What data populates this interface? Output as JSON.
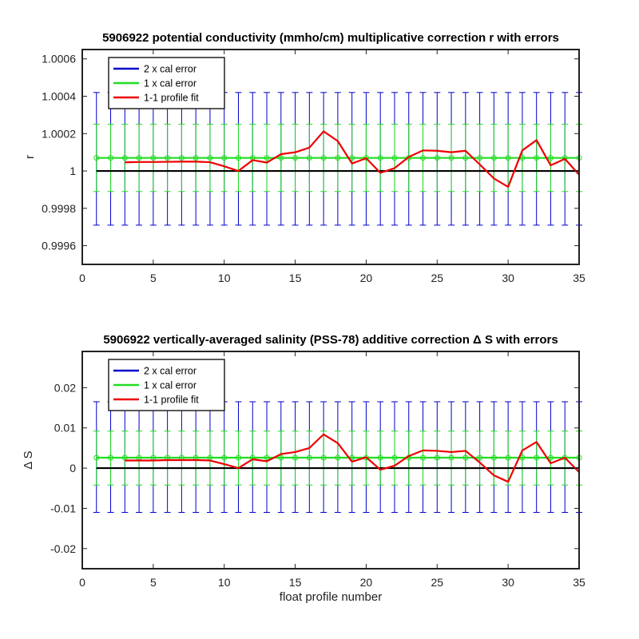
{
  "chart_data": [
    {
      "type": "line",
      "title": "5906922 potential conductivity (mmho/cm) multiplicative correction r with errors",
      "xlabel": "",
      "ylabel": "r",
      "xlim": [
        0,
        35
      ],
      "ylim": [
        0.9995,
        1.00065
      ],
      "xticks": [
        0,
        5,
        10,
        15,
        20,
        25,
        30,
        35
      ],
      "xtick_labels": [
        "0",
        "5",
        "10",
        "15",
        "20",
        "25",
        "30",
        "35"
      ],
      "yticks": [
        0.9996,
        0.9998,
        1,
        1.0002,
        1.0004,
        1.0006
      ],
      "ytick_labels": [
        "0.9996",
        "0.9998",
        "1",
        "1.0002",
        "1.0004",
        "1.0006"
      ],
      "legend": {
        "placement": "top-left",
        "entries": [
          "2 x cal error",
          "1 x cal error",
          "1-1 profile fit"
        ]
      },
      "colors": {
        "two_x": "#0000cc",
        "one_x": "#22dd22",
        "fit": "#ee0000",
        "reference": "#000000"
      },
      "reference_line": 1,
      "correction": 1.00007,
      "two_x_cal_error": {
        "lower": 0.99971,
        "upper": 1.00042
      },
      "one_x_cal_error": {
        "lower": 0.99989,
        "upper": 1.00025
      },
      "profile_fit": {
        "x": [
          3,
          4,
          5,
          6,
          7,
          8,
          9,
          10,
          11,
          12,
          13,
          14,
          15,
          16,
          17,
          18,
          19,
          20,
          21,
          22,
          23,
          24,
          25,
          26,
          27,
          28,
          29,
          30,
          31,
          32,
          33,
          34,
          35
        ],
        "y": [
          1.000046,
          1.000048,
          1.000048,
          1.000049,
          1.00005,
          1.00005,
          1.000047,
          1.000025,
          1.0,
          1.000058,
          1.000045,
          1.00009,
          1.0001,
          1.000125,
          1.000212,
          1.00016,
          1.00004,
          1.000068,
          0.99999,
          1.000015,
          1.000075,
          1.00011,
          1.000108,
          1.0001,
          1.000108,
          1.000035,
          0.99996,
          0.999915,
          1.00011,
          1.000165,
          1.00003,
          1.000065,
          0.99998
        ]
      }
    },
    {
      "type": "line",
      "title": "5906922 vertically-averaged salinity (PSS-78) additive correction Δ S with errors",
      "xlabel": "float profile number",
      "ylabel": "Δ S",
      "xlim": [
        0,
        35
      ],
      "ylim": [
        -0.025,
        0.029
      ],
      "xticks": [
        0,
        5,
        10,
        15,
        20,
        25,
        30,
        35
      ],
      "xtick_labels": [
        "0",
        "5",
        "10",
        "15",
        "20",
        "25",
        "30",
        "35"
      ],
      "yticks": [
        -0.02,
        -0.01,
        0,
        0.01,
        0.02
      ],
      "ytick_labels": [
        "-0.02",
        "-0.01",
        "0",
        "0.01",
        "0.02"
      ],
      "legend": {
        "placement": "top-left",
        "entries": [
          "2 x cal error",
          "1 x cal error",
          "1-1 profile fit"
        ]
      },
      "colors": {
        "two_x": "#0000cc",
        "one_x": "#22dd22",
        "fit": "#ee0000",
        "reference": "#000000"
      },
      "reference_line": 0,
      "correction": 0.0026,
      "two_x_cal_error": {
        "lower": -0.011,
        "upper": 0.0165
      },
      "one_x_cal_error": {
        "lower": -0.0042,
        "upper": 0.0092
      },
      "profile_fit": {
        "x": [
          3,
          4,
          5,
          6,
          7,
          8,
          9,
          10,
          11,
          12,
          13,
          14,
          15,
          16,
          17,
          18,
          19,
          20,
          21,
          22,
          23,
          24,
          25,
          26,
          27,
          28,
          29,
          30,
          31,
          32,
          33,
          34,
          35
        ],
        "y": [
          0.0019,
          0.0019,
          0.0019,
          0.002,
          0.002,
          0.002,
          0.0019,
          0.001,
          0.0,
          0.0022,
          0.0017,
          0.0035,
          0.004,
          0.005,
          0.0084,
          0.0062,
          0.0016,
          0.0027,
          -0.0004,
          0.0006,
          0.003,
          0.0044,
          0.0043,
          0.004,
          0.0043,
          0.0014,
          -0.0018,
          -0.0034,
          0.0044,
          0.0065,
          0.0012,
          0.0026,
          -0.001
        ]
      }
    }
  ]
}
